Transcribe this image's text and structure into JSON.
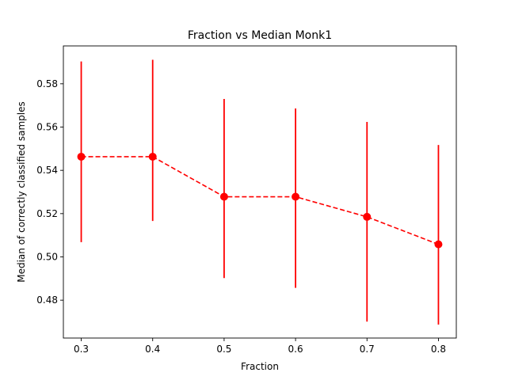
{
  "chart_data": {
    "type": "line",
    "title": "Fraction vs Median Monk1",
    "xlabel": "Fraction",
    "ylabel": "Median of correctly classified samples",
    "xlim": [
      0.275,
      0.825
    ],
    "ylim": [
      0.4625,
      0.5975
    ],
    "xticks": [
      0.3,
      0.4,
      0.5,
      0.6,
      0.7,
      0.8
    ],
    "xtick_labels": [
      "0.3",
      "0.4",
      "0.5",
      "0.6",
      "0.7",
      "0.8"
    ],
    "yticks": [
      0.48,
      0.5,
      0.52,
      0.54,
      0.56,
      0.58
    ],
    "ytick_labels": [
      "0.48",
      "0.50",
      "0.52",
      "0.54",
      "0.56",
      "0.58"
    ],
    "grid": false,
    "series": [
      {
        "color": "#ff0000",
        "line_style": "dashed",
        "marker": "circle",
        "x": [
          0.3,
          0.4,
          0.5,
          0.6,
          0.7,
          0.8
        ],
        "y": [
          0.5463,
          0.5463,
          0.5278,
          0.5278,
          0.5185,
          0.5058
        ],
        "err_low": [
          0.5068,
          0.5166,
          0.4902,
          0.4857,
          0.4701,
          0.4687
        ],
        "err_high": [
          0.5903,
          0.5911,
          0.573,
          0.5686,
          0.5624,
          0.5517
        ]
      }
    ]
  }
}
